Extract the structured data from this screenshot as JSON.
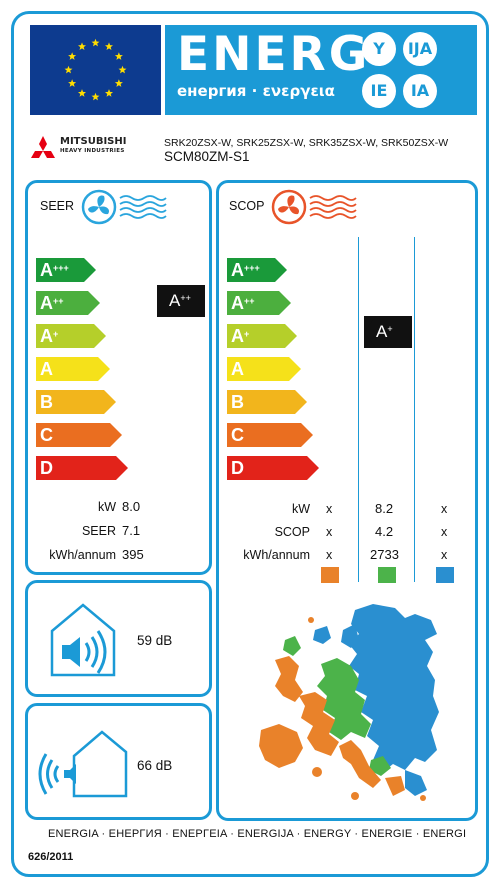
{
  "header": {
    "title": "ENERG",
    "subtitle": "енергия · ενεργεια",
    "lang_badges": [
      "Y",
      "IJA",
      "IE",
      "IA"
    ]
  },
  "brand": {
    "name": "MITSUBISHI",
    "subname": "HEAVY INDUSTRIES"
  },
  "models": {
    "line1": "SRK20ZSX-W, SRK25ZSX-W, SRK35ZSX-W, SRK50ZSX-W",
    "line2": "SCM80ZM-S1"
  },
  "scale": [
    {
      "letter": "A",
      "plus": "+++",
      "color": "#1a9a3a"
    },
    {
      "letter": "A",
      "plus": "++",
      "color": "#4caf3e"
    },
    {
      "letter": "A",
      "plus": "+",
      "color": "#b5cf2a"
    },
    {
      "letter": "A",
      "plus": "",
      "color": "#f5e11a"
    },
    {
      "letter": "B",
      "plus": "",
      "color": "#f2b51c"
    },
    {
      "letter": "C",
      "plus": "",
      "color": "#ea6e20"
    },
    {
      "letter": "D",
      "plus": "",
      "color": "#e2231a"
    }
  ],
  "seer": {
    "title": "SEER",
    "rating_letter": "A",
    "rating_plus": "++",
    "rows": [
      {
        "label": "kW",
        "value": "8.0"
      },
      {
        "label": "SEER",
        "value": "7.1"
      },
      {
        "label": "kWh/annum",
        "value": "395"
      }
    ]
  },
  "scop": {
    "title": "SCOP",
    "rating_letter": "A",
    "rating_plus": "+",
    "rows": [
      {
        "label": "kW",
        "warm": "x",
        "average": "8.2",
        "cold": "x"
      },
      {
        "label": "SCOP",
        "warm": "x",
        "average": "4.2",
        "cold": "x"
      },
      {
        "label": "kWh/annum",
        "warm": "x",
        "average": "2733",
        "cold": "x"
      }
    ],
    "zone_colors": {
      "warm": "#e9822a",
      "average": "#4cb34a",
      "cold": "#2a8fd0"
    }
  },
  "noise": {
    "indoor": "59",
    "outdoor": "66",
    "unit": "dB"
  },
  "footer": {
    "languages": "ENERGIA · ЕНЕРГИЯ · ΕΝΕΡΓΕΙΑ · ENERGIJA · ENERGY · ENERGIE · ENERGI",
    "regulation": "626/2011"
  },
  "colors": {
    "accent": "#1b9ad6",
    "eu_blue": "#0d3b8f",
    "eu_star": "#ffdd00",
    "fan_cool": "#2aa5dd",
    "fan_heat": "#e8542a"
  }
}
